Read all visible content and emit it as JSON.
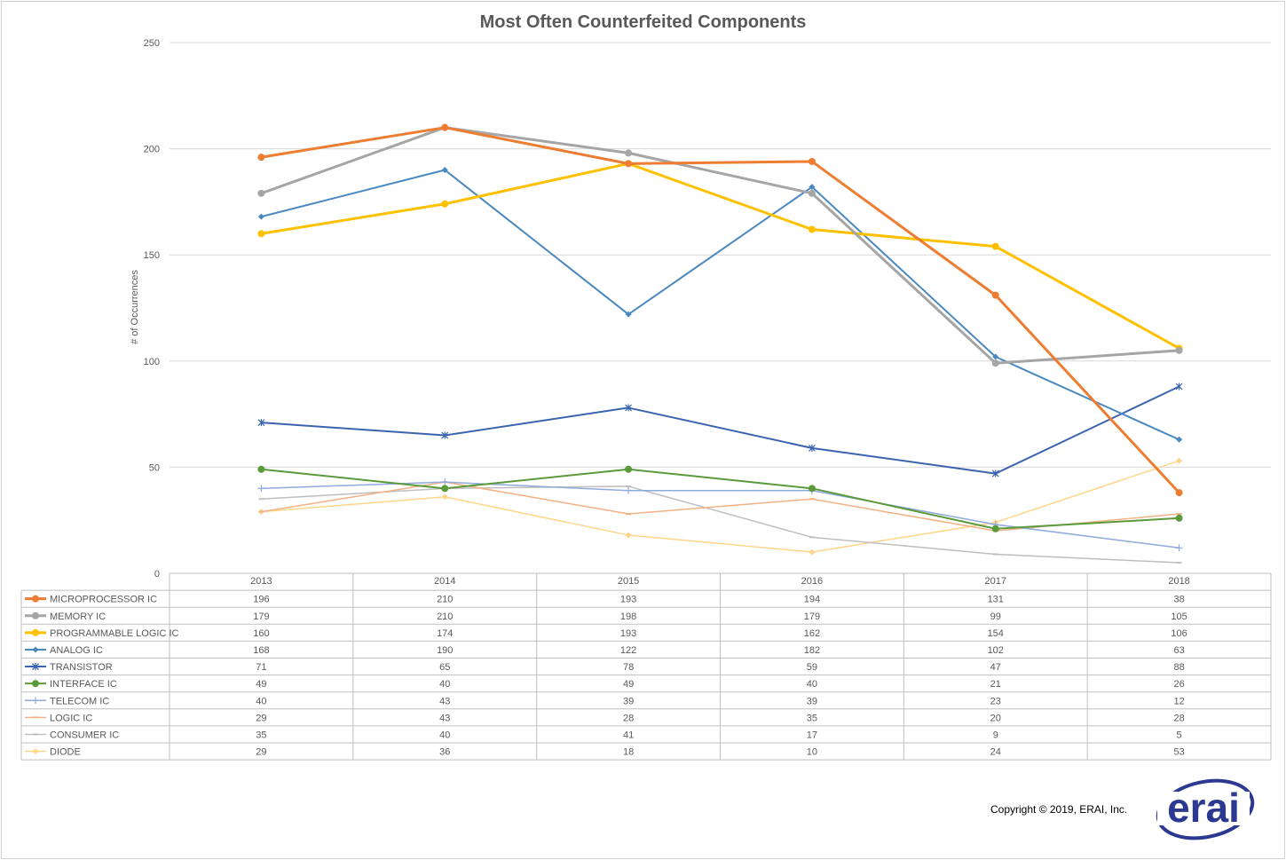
{
  "chart_data": {
    "type": "line",
    "title": "Most Often Counterfeited Components",
    "xlabel": "",
    "ylabel": "# of Occurrences",
    "ylim": [
      0,
      250
    ],
    "yticks": [
      "0",
      "50",
      "100",
      "150",
      "200",
      "250"
    ],
    "grid": true,
    "legend": "data-table-below",
    "categories": [
      "2013",
      "2014",
      "2015",
      "2016",
      "2017",
      "2018"
    ],
    "series": [
      {
        "name": "MICROPROCESSOR IC",
        "color": "#ED7D31",
        "marker": "circle",
        "width": 3,
        "values": [
          196,
          210,
          193,
          194,
          131,
          38
        ]
      },
      {
        "name": "MEMORY IC",
        "color": "#A5A5A5",
        "marker": "circle",
        "width": 3,
        "values": [
          179,
          210,
          198,
          179,
          99,
          105
        ]
      },
      {
        "name": "PROGRAMMABLE LOGIC IC",
        "color": "#FFC000",
        "marker": "circle",
        "width": 3,
        "values": [
          160,
          174,
          193,
          162,
          154,
          106
        ]
      },
      {
        "name": "ANALOG IC",
        "color": "#4A89C0",
        "marker": "diamond",
        "width": 2,
        "values": [
          168,
          190,
          122,
          182,
          102,
          63
        ]
      },
      {
        "name": "TRANSISTOR",
        "color": "#3A64B0",
        "marker": "star",
        "width": 2,
        "values": [
          71,
          65,
          78,
          59,
          47,
          88
        ]
      },
      {
        "name": "INTERFACE IC",
        "color": "#5A9A3B",
        "marker": "circle",
        "width": 2,
        "values": [
          49,
          40,
          49,
          40,
          21,
          26
        ]
      },
      {
        "name": "TELECOM IC",
        "color": "#8FAADC",
        "marker": "plus",
        "width": 1.5,
        "values": [
          40,
          43,
          39,
          39,
          23,
          12
        ]
      },
      {
        "name": "LOGIC IC",
        "color": "#F4B183",
        "marker": "dash",
        "width": 1.5,
        "values": [
          29,
          43,
          28,
          35,
          20,
          28
        ]
      },
      {
        "name": "CONSUMER IC",
        "color": "#BFBFBF",
        "marker": "dash",
        "width": 1.5,
        "values": [
          35,
          40,
          41,
          17,
          9,
          5
        ]
      },
      {
        "name": "DIODE",
        "color": "#FFD58A",
        "marker": "diamond",
        "width": 1.5,
        "values": [
          29,
          36,
          18,
          10,
          24,
          53
        ]
      }
    ]
  },
  "footer": {
    "copyright": "Copyright © 2019, ERAI, Inc.",
    "logo_text": "erai",
    "logo_color": "#2B3990"
  }
}
